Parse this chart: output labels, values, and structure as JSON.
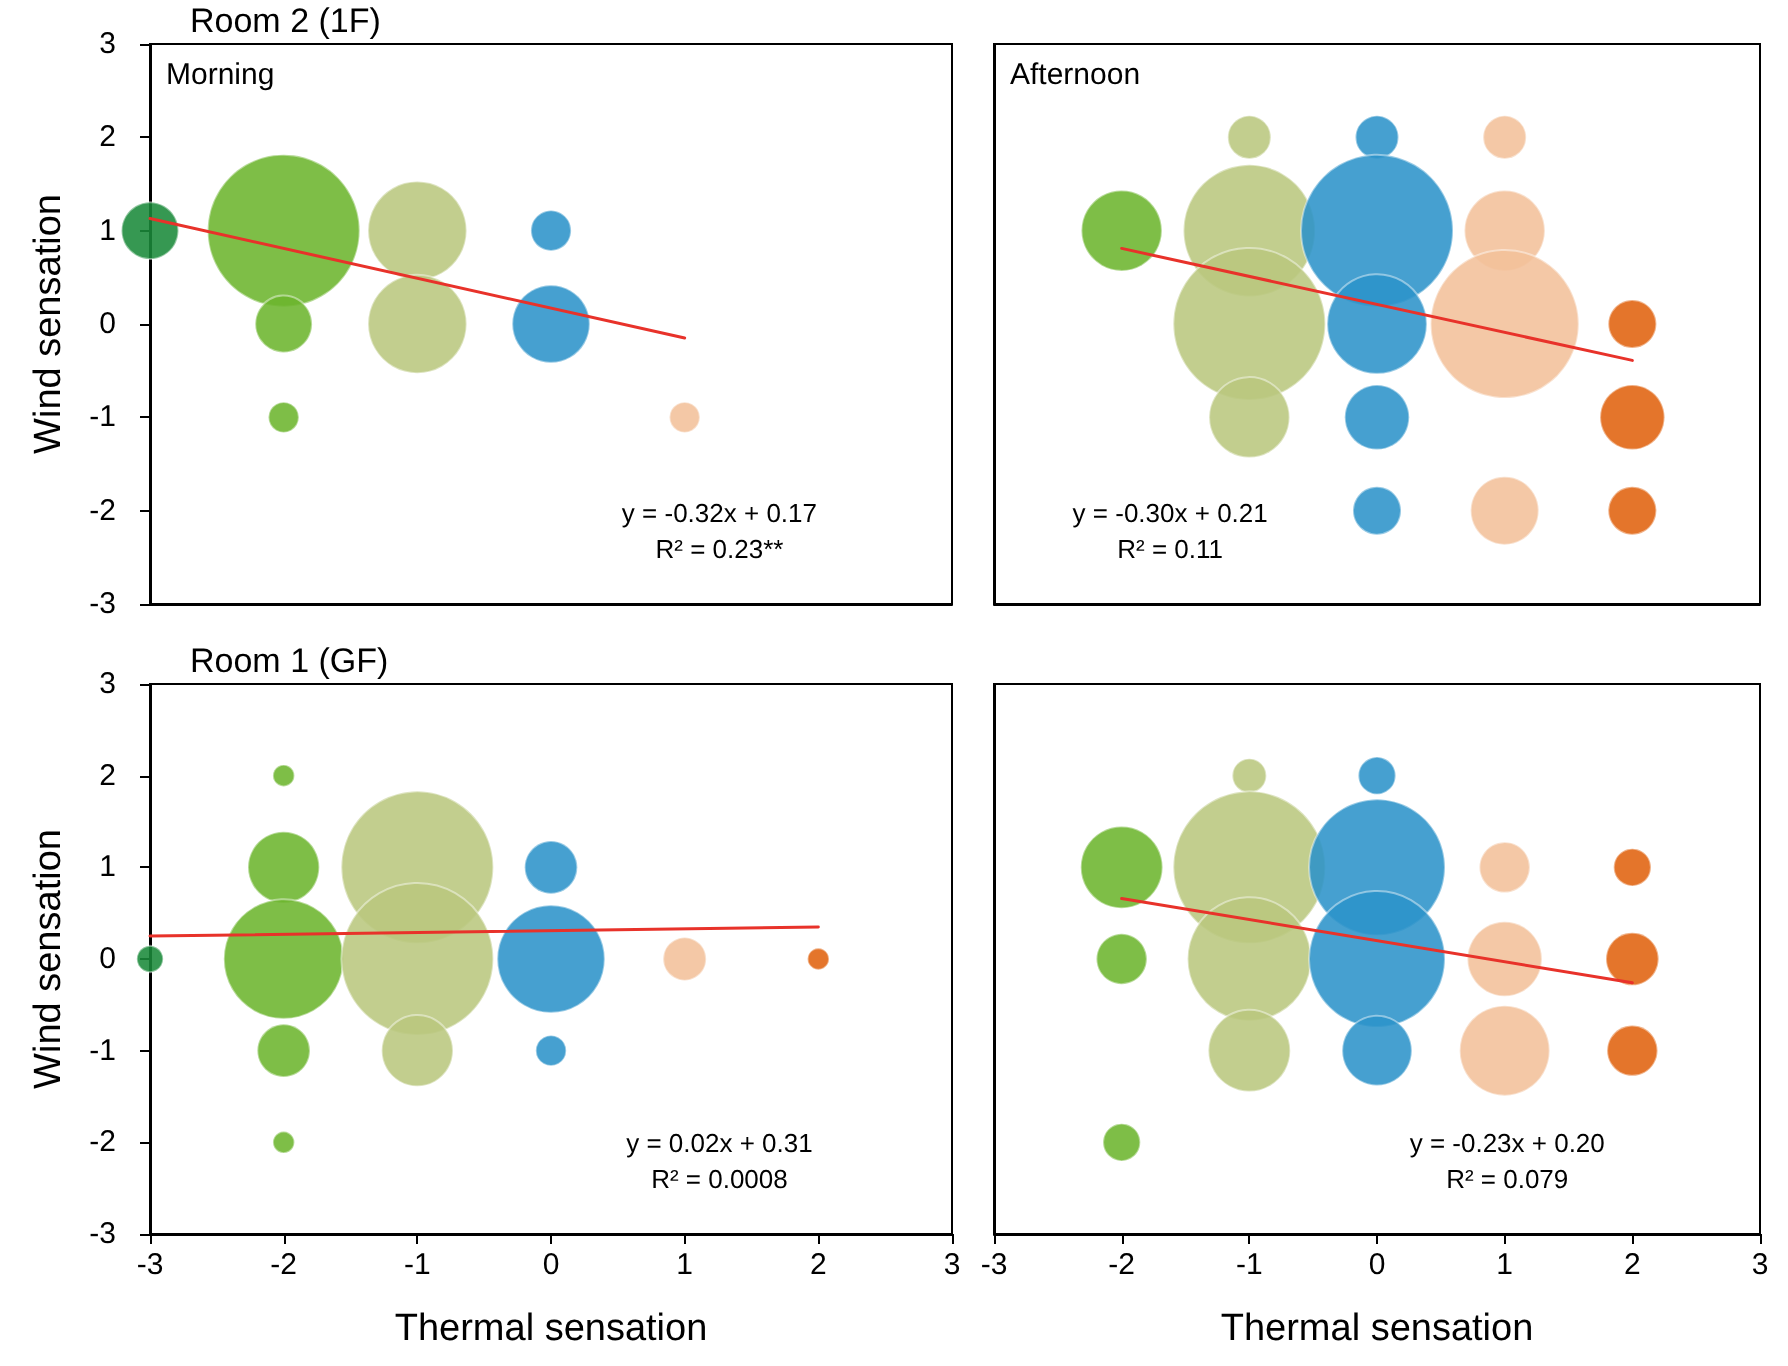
{
  "chart_data": [
    {
      "type": "bubble",
      "title": "Room 2 (1F)",
      "ylabel": "Wind sensation",
      "annotations": [
        "Morning",
        "y = -0.32x + 0.17",
        "R² = 0.23**"
      ],
      "xlim": [
        -3,
        3
      ],
      "xticks": [
        -3,
        -2,
        -1,
        0,
        1,
        2,
        3
      ],
      "ylim": [
        -3,
        3
      ],
      "yticks": [
        -3,
        -2,
        -1,
        0,
        1,
        2,
        3
      ],
      "tick_labels": "y",
      "marker": "circle",
      "series": [
        {
          "x": [
            -3,
            -2,
            -2,
            -2,
            -1,
            -1,
            0,
            0,
            1
          ],
          "values": [
            1,
            1,
            0,
            -1,
            1,
            0,
            1,
            0,
            -1
          ],
          "sizes": [
            0.14,
            1,
            0.14,
            0.04,
            0.42,
            0.42,
            0.07,
            0.26,
            0.04
          ],
          "colors": [
            "#1a8a3a",
            "#6cb52e",
            "#6cb52e",
            "#6cb52e",
            "#b9c77e",
            "#b9c77e",
            "#2c93c9",
            "#2c93c9",
            "#f2c09a"
          ]
        },
        {
          "type": "line",
          "x": [
            -3,
            1
          ],
          "values": [
            1.13,
            -0.15
          ],
          "color": "#e8322a",
          "marker": "none",
          "line_style": "solid"
        }
      ]
    },
    {
      "type": "bubble",
      "annotations": [
        "Afternoon",
        "y = -0.30x + 0.21",
        "R² = 0.11"
      ],
      "xlim": [
        -3,
        3
      ],
      "xticks": [
        -3,
        -2,
        -1,
        0,
        1,
        2,
        3
      ],
      "ylim": [
        -3,
        3
      ],
      "yticks": [
        -3,
        -2,
        -1,
        0,
        1,
        2,
        3
      ],
      "tick_labels": false,
      "marker": "circle",
      "series": [
        {
          "x": [
            -2,
            -1,
            -1,
            -1,
            -1,
            0,
            0,
            0,
            0,
            0,
            1,
            1,
            1,
            1,
            2,
            2,
            2
          ],
          "values": [
            1,
            2,
            1,
            0,
            -1,
            2,
            1,
            0,
            -1,
            -2,
            2,
            1,
            0,
            -2,
            0,
            -1,
            -2
          ],
          "sizes": [
            0.28,
            0.08,
            0.75,
            1,
            0.28,
            0.08,
            1,
            0.43,
            0.18,
            0.1,
            0.08,
            0.28,
            0.95,
            0.2,
            0.1,
            0.18,
            0.1
          ],
          "colors": [
            "#6cb52e",
            "#b9c77e",
            "#b9c77e",
            "#b9c77e",
            "#b9c77e",
            "#2c93c9",
            "#2c93c9",
            "#2c93c9",
            "#2c93c9",
            "#2c93c9",
            "#f2c09a",
            "#f2c09a",
            "#f2c09a",
            "#f2c09a",
            "#e0620e",
            "#e0620e",
            "#e0620e"
          ]
        },
        {
          "type": "line",
          "x": [
            -2,
            2
          ],
          "values": [
            0.81,
            -0.39
          ],
          "color": "#e8322a",
          "marker": "none",
          "line_style": "solid"
        }
      ]
    },
    {
      "type": "bubble",
      "title": "Room 1 (GF)",
      "xlabel": "Thermal sensation",
      "ylabel": "Wind sensation",
      "annotations": [
        "y = 0.02x + 0.31",
        "R² = 0.0008"
      ],
      "xlim": [
        -3,
        3
      ],
      "xticks": [
        -3,
        -2,
        -1,
        0,
        1,
        2,
        3
      ],
      "ylim": [
        -3,
        3
      ],
      "yticks": [
        -3,
        -2,
        -1,
        0,
        1,
        2,
        3
      ],
      "marker": "circle",
      "series": [
        {
          "x": [
            -3,
            -2,
            -2,
            -2,
            -2,
            -2,
            -1,
            -1,
            -1,
            0,
            0,
            0,
            1,
            2
          ],
          "values": [
            0,
            2,
            1,
            0,
            -1,
            -2,
            1,
            0,
            -1,
            1,
            0,
            -1,
            0,
            0
          ],
          "sizes": [
            0.03,
            0.02,
            0.22,
            0.62,
            0.12,
            0.02,
            1,
            1,
            0.22,
            0.12,
            0.5,
            0.04,
            0.08,
            0.02
          ],
          "colors": [
            "#1a8a3a",
            "#6cb52e",
            "#6cb52e",
            "#6cb52e",
            "#6cb52e",
            "#6cb52e",
            "#b9c77e",
            "#b9c77e",
            "#b9c77e",
            "#2c93c9",
            "#2c93c9",
            "#2c93c9",
            "#f2c09a",
            "#e0620e"
          ]
        },
        {
          "type": "line",
          "x": [
            -3,
            2
          ],
          "values": [
            0.25,
            0.35
          ],
          "color": "#e8322a",
          "marker": "none",
          "line_style": "solid"
        }
      ]
    },
    {
      "type": "bubble",
      "xlabel": "Thermal sensation",
      "annotations": [
        "y = -0.23x + 0.20",
        "R² = 0.079"
      ],
      "xlim": [
        -3,
        3
      ],
      "xticks": [
        -3,
        -2,
        -1,
        0,
        1,
        2,
        3
      ],
      "ylim": [
        -3,
        3
      ],
      "yticks": [
        -3,
        -2,
        -1,
        0,
        1,
        2,
        3
      ],
      "tick_labels": "x",
      "marker": "circle",
      "series": [
        {
          "x": [
            -2,
            -2,
            -2,
            -1,
            -1,
            -1,
            -1,
            0,
            0,
            0,
            0,
            1,
            1,
            1,
            2,
            2,
            2
          ],
          "values": [
            1,
            0,
            -2,
            2,
            1,
            0,
            -1,
            2,
            1,
            0,
            -1,
            1,
            0,
            -1,
            1,
            0,
            -1
          ],
          "sizes": [
            0.29,
            0.11,
            0.06,
            0.05,
            1,
            0.66,
            0.29,
            0.06,
            0.8,
            0.8,
            0.21,
            0.11,
            0.24,
            0.35,
            0.06,
            0.12,
            0.11
          ],
          "colors": [
            "#6cb52e",
            "#6cb52e",
            "#6cb52e",
            "#b9c77e",
            "#b9c77e",
            "#b9c77e",
            "#b9c77e",
            "#2c93c9",
            "#2c93c9",
            "#2c93c9",
            "#2c93c9",
            "#f2c09a",
            "#f2c09a",
            "#f2c09a",
            "#e0620e",
            "#e0620e",
            "#e0620e"
          ]
        },
        {
          "type": "line",
          "x": [
            -2,
            2
          ],
          "values": [
            0.66,
            -0.26
          ],
          "color": "#e8322a",
          "marker": "none",
          "line_style": "solid"
        }
      ]
    }
  ]
}
